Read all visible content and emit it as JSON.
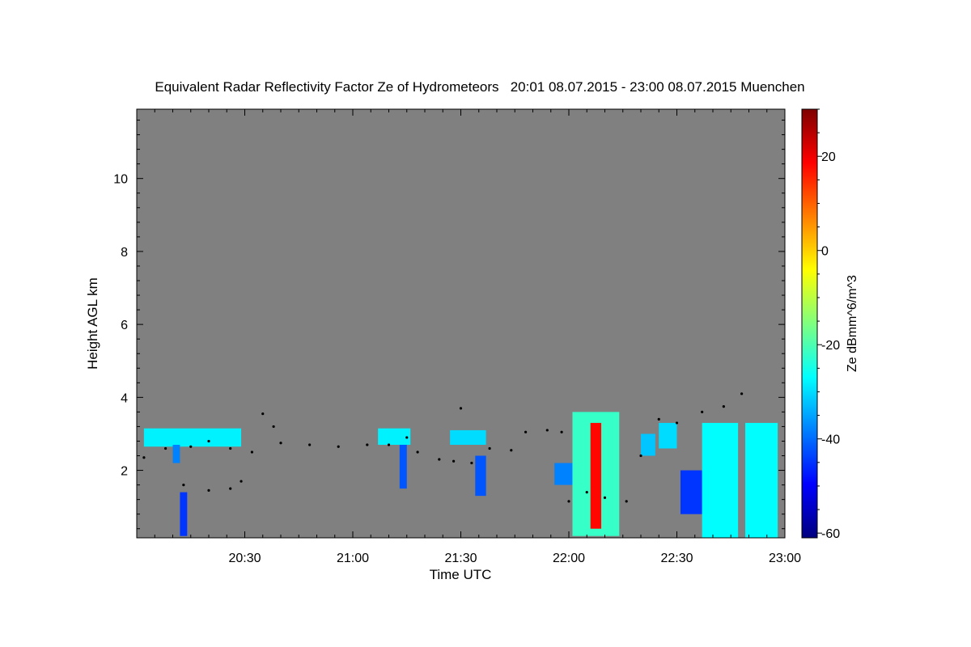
{
  "chart_data": {
    "type": "heatmap",
    "title": "Equivalent Radar Reflectivity Factor Ze of Hydrometeors   20:01 08.07.2015 - 23:00 08.07.2015 Muenchen",
    "xlabel": "Time UTC",
    "ylabel": "Height AGL km",
    "colorbar_label": "Ze dBmm^6/m^3",
    "x_range": [
      "20:01",
      "23:00"
    ],
    "y_range_km": [
      0.15,
      11.9
    ],
    "x_ticks": [
      "20:30",
      "21:00",
      "21:30",
      "22:00",
      "22:30",
      "23:00"
    ],
    "x_tick_minutes": [
      29,
      59,
      89,
      119,
      149,
      179
    ],
    "y_ticks": [
      "2",
      "4",
      "6",
      "8",
      "10"
    ],
    "y_tick_values": [
      2,
      4,
      6,
      8,
      10
    ],
    "colorbar_range": [
      -61,
      30
    ],
    "colorbar_ticks": [
      "20",
      "0",
      "-20",
      "-40",
      "-60"
    ],
    "colorbar_tick_values": [
      20,
      0,
      -20,
      -40,
      -60
    ],
    "no_data_color": "#808080",
    "colormap": [
      "#00007f",
      "#0000ff",
      "#007fff",
      "#00ffff",
      "#7fff7f",
      "#ffff00",
      "#ff7f00",
      "#ff0000",
      "#7f0000"
    ],
    "echoes": [
      {
        "t0": 2,
        "t1": 29,
        "h0": 2.65,
        "h1": 3.15,
        "dbz": -28
      },
      {
        "t0": 10,
        "t1": 12,
        "h0": 2.2,
        "h1": 2.7,
        "dbz": -38
      },
      {
        "t0": 12,
        "t1": 14,
        "h0": 0.2,
        "h1": 1.4,
        "dbz": -45
      },
      {
        "t0": 67,
        "t1": 76,
        "h0": 2.7,
        "h1": 3.15,
        "dbz": -28
      },
      {
        "t0": 73,
        "t1": 75,
        "h0": 1.5,
        "h1": 2.7,
        "dbz": -42
      },
      {
        "t0": 87,
        "t1": 97,
        "h0": 2.7,
        "h1": 3.1,
        "dbz": -30
      },
      {
        "t0": 94,
        "t1": 97,
        "h0": 1.3,
        "h1": 2.4,
        "dbz": -42
      },
      {
        "t0": 116,
        "t1": 121,
        "h0": 1.6,
        "h1": 2.2,
        "dbz": -38
      },
      {
        "t0": 121,
        "t1": 134,
        "h0": 0.2,
        "h1": 3.6,
        "dbz": -22
      },
      {
        "t0": 126,
        "t1": 129,
        "h0": 0.4,
        "h1": 3.3,
        "dbz": 18
      },
      {
        "t0": 140,
        "t1": 144,
        "h0": 2.4,
        "h1": 3.0,
        "dbz": -32
      },
      {
        "t0": 145,
        "t1": 150,
        "h0": 2.6,
        "h1": 3.3,
        "dbz": -30
      },
      {
        "t0": 151,
        "t1": 157,
        "h0": 0.8,
        "h1": 2.0,
        "dbz": -45
      },
      {
        "t0": 157,
        "t1": 167,
        "h0": 0.15,
        "h1": 3.3,
        "dbz": -27
      },
      {
        "t0": 169,
        "t1": 178,
        "h0": 0.15,
        "h1": 3.3,
        "dbz": -27
      }
    ],
    "cloud_base_points": [
      {
        "t": 2,
        "h": 2.35
      },
      {
        "t": 8,
        "h": 2.6
      },
      {
        "t": 15,
        "h": 2.65
      },
      {
        "t": 20,
        "h": 2.8
      },
      {
        "t": 26,
        "h": 2.6
      },
      {
        "t": 32,
        "h": 2.5
      },
      {
        "t": 35,
        "h": 3.55
      },
      {
        "t": 38,
        "h": 3.2
      },
      {
        "t": 40,
        "h": 2.75
      },
      {
        "t": 48,
        "h": 2.7
      },
      {
        "t": 56,
        "h": 2.65
      },
      {
        "t": 64,
        "h": 2.7
      },
      {
        "t": 70,
        "h": 2.7
      },
      {
        "t": 75,
        "h": 2.9
      },
      {
        "t": 78,
        "h": 2.5
      },
      {
        "t": 84,
        "h": 2.3
      },
      {
        "t": 88,
        "h": 2.25
      },
      {
        "t": 90,
        "h": 3.7
      },
      {
        "t": 93,
        "h": 2.2
      },
      {
        "t": 98,
        "h": 2.6
      },
      {
        "t": 104,
        "h": 2.55
      },
      {
        "t": 108,
        "h": 3.05
      },
      {
        "t": 114,
        "h": 3.1
      },
      {
        "t": 118,
        "h": 3.05
      },
      {
        "t": 130,
        "h": 1.25
      },
      {
        "t": 136,
        "h": 1.15
      },
      {
        "t": 140,
        "h": 2.4
      },
      {
        "t": 145,
        "h": 3.4
      },
      {
        "t": 150,
        "h": 3.3
      },
      {
        "t": 157,
        "h": 3.6
      },
      {
        "t": 163,
        "h": 3.75
      },
      {
        "t": 168,
        "h": 4.1
      },
      {
        "t": 13,
        "h": 1.6
      },
      {
        "t": 20,
        "h": 1.45
      },
      {
        "t": 26,
        "h": 1.5
      },
      {
        "t": 29,
        "h": 1.7
      },
      {
        "t": 120,
        "h": 1.15
      },
      {
        "t": 125,
        "h": 1.4
      }
    ]
  }
}
